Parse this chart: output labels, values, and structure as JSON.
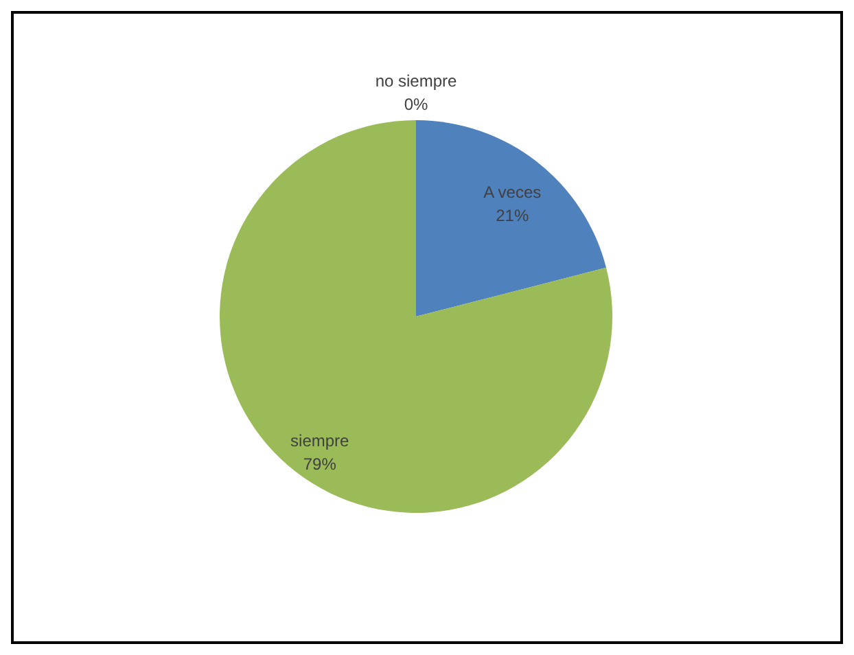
{
  "chart_data": {
    "type": "pie",
    "categories": [
      "A veces",
      "no siempre",
      "siempre"
    ],
    "values": [
      21,
      0,
      79
    ],
    "colors": [
      "#4f81bd",
      "#c0504d",
      "#9bbb59"
    ],
    "value_labels": [
      "21%",
      "0%",
      "79%"
    ],
    "legend": false
  }
}
